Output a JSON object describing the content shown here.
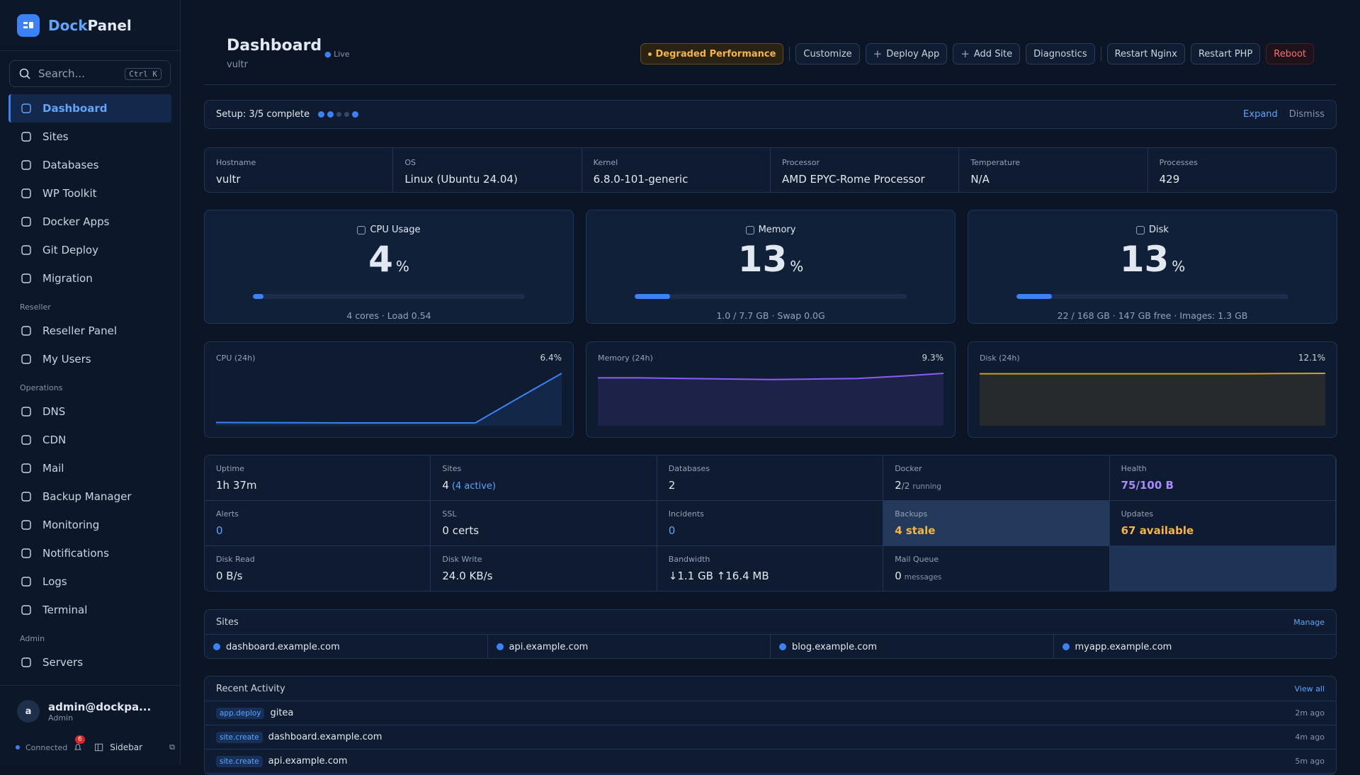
{
  "sidebar": {
    "brand_a": "Dock",
    "brand_b": "Panel",
    "search": "Search...",
    "shortcut": "Ctrl K",
    "nav_main": [
      "Dashboard",
      "Sites",
      "Databases",
      "WP Toolkit",
      "Docker Apps",
      "Git Deploy",
      "Migration"
    ],
    "active": 0,
    "nav_groups": [
      {
        "title": "Reseller",
        "items": [
          "Reseller Panel",
          "My Users"
        ]
      },
      {
        "title": "Operations",
        "items": [
          "DNS",
          "CDN",
          "Mail",
          "Backup Manager",
          "Monitoring",
          "Notifications",
          "Logs",
          "Terminal"
        ]
      },
      {
        "title": "Admin",
        "items": [
          "Servers"
        ]
      }
    ],
    "user": {
      "avatar": "a",
      "name": "admin@dockpa...",
      "role": "Admin"
    },
    "footer": {
      "status": "Connected",
      "badge": "6",
      "toggle": "Sidebar"
    }
  },
  "header": {
    "title": "Dashboard",
    "live": "Live",
    "subtitle": "vultr",
    "actions": [
      "Degraded Performance",
      "Customize",
      "Deploy App",
      "Add Site",
      "Diagnostics",
      "Restart Nginx",
      "Restart PHP",
      "Reboot"
    ]
  },
  "setup": {
    "text": "Setup: 3/5 complete",
    "steps": [
      true,
      true,
      false,
      false,
      true
    ],
    "expand": "Expand",
    "dismiss": "Dismiss"
  },
  "info": [
    {
      "label": "Hostname",
      "value": "vultr"
    },
    {
      "label": "OS",
      "value": "Linux (Ubuntu 24.04)"
    },
    {
      "label": "Kernel",
      "value": "6.8.0-101-generic"
    },
    {
      "label": "Processor",
      "value": "AMD EPYC-Rome Processor"
    },
    {
      "label": "Temperature",
      "value": "N/A"
    },
    {
      "label": "Processes",
      "value": "429"
    }
  ],
  "gauges": [
    {
      "title": "CPU Usage",
      "value": 4,
      "unit": "%",
      "detail": "4 cores · Load 0.54"
    },
    {
      "title": "Memory",
      "value": 13,
      "unit": "%",
      "detail": "1.0 / 7.7 GB · Swap 0.0G"
    },
    {
      "title": "Disk",
      "value": 13,
      "unit": "%",
      "detail": "22 / 168 GB · 147 GB free · Images: 1.3 GB"
    }
  ],
  "sparks": [
    {
      "title": "CPU (24h)",
      "current_label": "6.4%",
      "color": "#3b82f6",
      "ylim": [
        0,
        6.4
      ],
      "values": [
        0.4,
        0.38,
        0.36,
        0.35,
        0.35,
        0.35,
        0.35,
        3.4,
        6.4
      ]
    },
    {
      "title": "Memory (24h)",
      "current_label": "9.3%",
      "color": "#8b5cf6",
      "ylim": [
        0,
        9.3
      ],
      "values": [
        8.5,
        8.5,
        8.4,
        8.3,
        8.2,
        8.3,
        8.4,
        8.8,
        9.3
      ]
    },
    {
      "title": "Disk (24h)",
      "current_label": "12.1%",
      "color": "#d4a017",
      "ylim": [
        0,
        12.1
      ],
      "values": [
        12.0,
        12.0,
        12.0,
        12.0,
        12.0,
        12.0,
        12.0,
        12.05,
        12.1
      ]
    }
  ],
  "stats": [
    {
      "label": "Uptime",
      "value": "1h 37m"
    },
    {
      "label": "Sites",
      "value": "4",
      "extra": "(4 active)",
      "extra_tone": "blue"
    },
    {
      "label": "Databases",
      "value": "2"
    },
    {
      "label": "Docker",
      "value": "2",
      "extra": "/2",
      "note": "running"
    },
    {
      "label": "Health",
      "value": "75/100 B",
      "tone": "purple"
    },
    {
      "label": "Alerts",
      "value": "0",
      "tone": "blue"
    },
    {
      "label": "SSL",
      "value": "0 certs"
    },
    {
      "label": "Incidents",
      "value": "0",
      "tone": "blue"
    },
    {
      "label": "Backups",
      "value": "4 stale",
      "tone": "warn",
      "highlight": true
    },
    {
      "label": "Updates",
      "value": "67 available",
      "tone": "warn"
    },
    {
      "label": "Disk Read",
      "value": "0 B/s"
    },
    {
      "label": "Disk Write",
      "value": "24.0 KB/s"
    },
    {
      "label": "Bandwidth",
      "value": "↓1.1 GB ↑16.4 MB"
    },
    {
      "label": "Mail Queue",
      "value": "0",
      "note": "messages"
    }
  ],
  "sites": {
    "title": "Sites",
    "manage": "Manage",
    "items": [
      "dashboard.example.com",
      "api.example.com",
      "blog.example.com",
      "myapp.example.com"
    ]
  },
  "activity": {
    "title": "Recent Activity",
    "view_all": "View all",
    "items": [
      {
        "tag": "app.deploy",
        "name": "gitea",
        "time": "2m ago"
      },
      {
        "tag": "site.create",
        "name": "dashboard.example.com",
        "time": "4m ago"
      },
      {
        "tag": "site.create",
        "name": "api.example.com",
        "time": "5m ago"
      }
    ]
  }
}
